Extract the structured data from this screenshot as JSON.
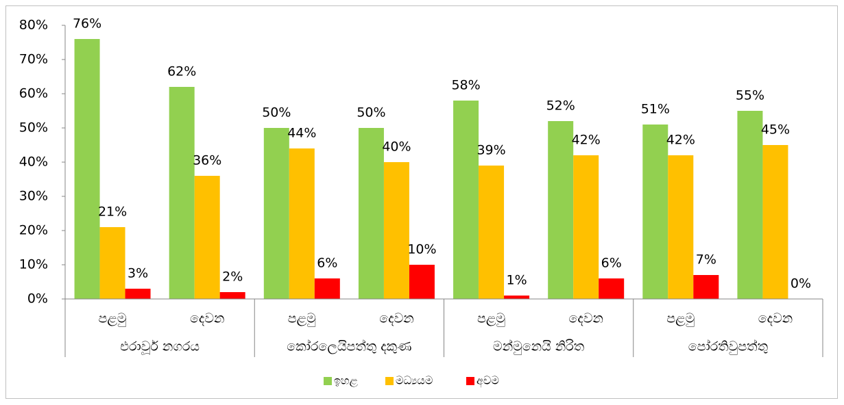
{
  "chart_data": {
    "type": "bar",
    "categories": [
      "පළමු",
      "දෙවන",
      "පළමු",
      "දෙවන",
      "පළමු",
      "දෙවන",
      "පළමු",
      "දෙවන"
    ],
    "groups": [
      "එරාවූර් නගරය",
      "කෝරලෙයිපත්තු දකුණ",
      "මන්මුනෙයි නිරිත",
      "පෝරතිවුපත්තු"
    ],
    "series": [
      {
        "name": "ඉහළ",
        "color": "#92d050",
        "values": [
          76,
          62,
          50,
          50,
          58,
          52,
          51,
          55
        ],
        "value_labels": [
          "76%",
          "62%",
          "50%",
          "50%",
          "58%",
          "52%",
          "51%",
          "55%"
        ]
      },
      {
        "name": "මධ්‍යයම",
        "color": "#ffc000",
        "values": [
          21,
          36,
          44,
          40,
          39,
          42,
          42,
          45
        ],
        "value_labels": [
          "21%",
          "36%",
          "44%",
          "40%",
          "39%",
          "42%",
          "42%",
          "45%"
        ]
      },
      {
        "name": "අවම",
        "color": "#ff0000",
        "values": [
          3,
          2,
          6,
          10,
          1,
          6,
          7,
          0
        ],
        "value_labels": [
          "3%",
          "2%",
          "6%",
          "10%",
          "1%",
          "6%",
          "7%",
          "0%"
        ]
      }
    ],
    "ylim": [
      0,
      80
    ],
    "yticks": [
      {
        "value": 0,
        "label": "0%"
      },
      {
        "value": 10,
        "label": "10%"
      },
      {
        "value": 20,
        "label": "20%"
      },
      {
        "value": 30,
        "label": "30%"
      },
      {
        "value": 40,
        "label": "40%"
      },
      {
        "value": 50,
        "label": "50%"
      },
      {
        "value": 60,
        "label": "60%"
      },
      {
        "value": 70,
        "label": "70%"
      },
      {
        "value": 80,
        "label": "80%"
      }
    ],
    "grid": false,
    "legend": "bottom"
  }
}
